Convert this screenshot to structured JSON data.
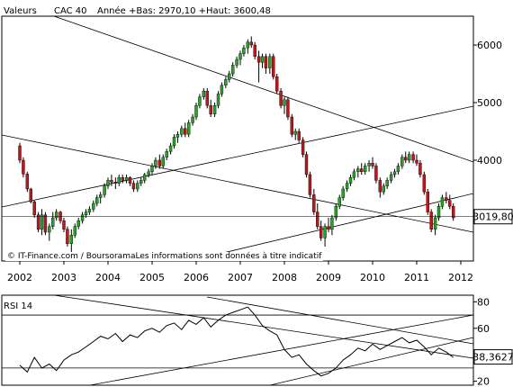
{
  "header": {
    "label": "Valeurs",
    "instrument": "CAC 40",
    "summary": "Année +Bas: 2970,10 +Haut: 3600,48"
  },
  "copyright": "© IT-Finance.com / BoursoramaLes informations sont données à titre indicatif",
  "chart_data": [
    {
      "type": "candlestick",
      "title": "",
      "x_ticks": [
        "2002",
        "2003",
        "2004",
        "2005",
        "2006",
        "2007",
        "2008",
        "2009",
        "2010",
        "2011",
        "2012"
      ],
      "y_ticks": [
        4000,
        5000,
        6000
      ],
      "ylim": [
        2250,
        6500
      ],
      "last_value_label": "3019,80",
      "last_value": 3019.8,
      "colors": {
        "up": "#2ca02c",
        "down": "#c0161b"
      },
      "candles": [
        [
          2002.0,
          4250,
          4300,
          3950,
          4000
        ],
        [
          2002.08,
          4000,
          4050,
          3700,
          3760
        ],
        [
          2002.17,
          3760,
          3800,
          3450,
          3500
        ],
        [
          2002.25,
          3500,
          3520,
          3250,
          3280
        ],
        [
          2002.33,
          3280,
          3300,
          3000,
          3050
        ],
        [
          2002.42,
          3050,
          3100,
          2750,
          2800
        ],
        [
          2002.5,
          2800,
          3150,
          2700,
          3050
        ],
        [
          2002.58,
          3050,
          3100,
          2700,
          2750
        ],
        [
          2002.67,
          2750,
          2900,
          2600,
          2850
        ],
        [
          2002.75,
          2850,
          3100,
          2800,
          3000
        ],
        [
          2002.83,
          3000,
          3150,
          2950,
          3100
        ],
        [
          2002.92,
          3100,
          3120,
          2900,
          2950
        ],
        [
          2003.0,
          2950,
          3000,
          2750,
          2800
        ],
        [
          2003.08,
          2800,
          2850,
          2500,
          2550
        ],
        [
          2003.17,
          2550,
          2800,
          2400,
          2700
        ],
        [
          2003.25,
          2700,
          2900,
          2650,
          2850
        ],
        [
          2003.33,
          2850,
          3000,
          2800,
          2950
        ],
        [
          2003.42,
          2950,
          3100,
          2900,
          3050
        ],
        [
          2003.5,
          3050,
          3150,
          3000,
          3100
        ],
        [
          2003.58,
          3100,
          3200,
          3050,
          3150
        ],
        [
          2003.67,
          3150,
          3300,
          3100,
          3250
        ],
        [
          2003.75,
          3250,
          3400,
          3200,
          3350
        ],
        [
          2003.83,
          3350,
          3450,
          3250,
          3400
        ],
        [
          2003.92,
          3400,
          3600,
          3350,
          3550
        ],
        [
          2004.0,
          3550,
          3700,
          3500,
          3650
        ],
        [
          2004.08,
          3650,
          3750,
          3550,
          3620
        ],
        [
          2004.17,
          3620,
          3700,
          3500,
          3600
        ],
        [
          2004.25,
          3600,
          3750,
          3550,
          3700
        ],
        [
          2004.33,
          3700,
          3750,
          3600,
          3650
        ],
        [
          2004.42,
          3650,
          3750,
          3600,
          3700
        ],
        [
          2004.5,
          3700,
          3720,
          3550,
          3600
        ],
        [
          2004.58,
          3600,
          3650,
          3450,
          3500
        ],
        [
          2004.67,
          3500,
          3650,
          3450,
          3600
        ],
        [
          2004.75,
          3600,
          3700,
          3550,
          3650
        ],
        [
          2004.83,
          3650,
          3780,
          3600,
          3750
        ],
        [
          2004.92,
          3750,
          3850,
          3700,
          3800
        ],
        [
          2005.0,
          3800,
          3950,
          3750,
          3900
        ],
        [
          2005.08,
          3900,
          4050,
          3850,
          4000
        ],
        [
          2005.17,
          4000,
          4100,
          3850,
          3900
        ],
        [
          2005.25,
          3900,
          4100,
          3850,
          4050
        ],
        [
          2005.33,
          4050,
          4200,
          4000,
          4150
        ],
        [
          2005.42,
          4150,
          4300,
          4100,
          4250
        ],
        [
          2005.5,
          4250,
          4450,
          4200,
          4400
        ],
        [
          2005.58,
          4400,
          4500,
          4300,
          4450
        ],
        [
          2005.67,
          4450,
          4600,
          4400,
          4550
        ],
        [
          2005.75,
          4550,
          4650,
          4400,
          4450
        ],
        [
          2005.83,
          4450,
          4700,
          4400,
          4650
        ],
        [
          2005.92,
          4650,
          4800,
          4600,
          4750
        ],
        [
          2006.0,
          4750,
          5000,
          4700,
          4950
        ],
        [
          2006.08,
          4950,
          5150,
          4900,
          5100
        ],
        [
          2006.17,
          5100,
          5250,
          5050,
          5200
        ],
        [
          2006.25,
          5200,
          5250,
          4900,
          4950
        ],
        [
          2006.33,
          4950,
          5050,
          4750,
          4800
        ],
        [
          2006.42,
          4800,
          5000,
          4750,
          4950
        ],
        [
          2006.5,
          4950,
          5200,
          4900,
          5150
        ],
        [
          2006.58,
          5150,
          5350,
          5100,
          5300
        ],
        [
          2006.67,
          5300,
          5450,
          5250,
          5400
        ],
        [
          2006.75,
          5400,
          5550,
          5350,
          5500
        ],
        [
          2006.83,
          5500,
          5700,
          5450,
          5650
        ],
        [
          2006.92,
          5650,
          5800,
          5600,
          5750
        ],
        [
          2007.0,
          5750,
          5900,
          5650,
          5850
        ],
        [
          2007.08,
          5850,
          6000,
          5800,
          5950
        ],
        [
          2007.17,
          5950,
          6100,
          5850,
          6050
        ],
        [
          2007.25,
          6050,
          6150,
          5950,
          6000
        ],
        [
          2007.33,
          6000,
          6050,
          5750,
          5800
        ],
        [
          2007.42,
          5800,
          5900,
          5350,
          5700
        ],
        [
          2007.5,
          5700,
          5850,
          5600,
          5800
        ],
        [
          2007.58,
          5800,
          5850,
          5500,
          5600
        ],
        [
          2007.67,
          5600,
          5850,
          5500,
          5800
        ],
        [
          2007.75,
          5800,
          5850,
          5400,
          5450
        ],
        [
          2007.83,
          5450,
          5500,
          5150,
          5200
        ],
        [
          2007.92,
          5200,
          5250,
          4900,
          4950
        ],
        [
          2008.0,
          4950,
          5100,
          4800,
          5050
        ],
        [
          2008.08,
          5050,
          5100,
          4700,
          4750
        ],
        [
          2008.17,
          4750,
          4800,
          4400,
          4450
        ],
        [
          2008.25,
          4450,
          4550,
          4350,
          4500
        ],
        [
          2008.33,
          4500,
          4550,
          4300,
          4350
        ],
        [
          2008.42,
          4350,
          4400,
          4050,
          4100
        ],
        [
          2008.5,
          4100,
          4150,
          3700,
          3750
        ],
        [
          2008.58,
          3750,
          3800,
          3350,
          3400
        ],
        [
          2008.67,
          3400,
          3500,
          3050,
          3100
        ],
        [
          2008.75,
          3100,
          3250,
          2800,
          2850
        ],
        [
          2008.83,
          2850,
          2950,
          2600,
          2650
        ],
        [
          2008.92,
          2650,
          2900,
          2500,
          2850
        ],
        [
          2009.0,
          2850,
          3000,
          2750,
          2800
        ],
        [
          2009.08,
          2800,
          3050,
          2700,
          3000
        ],
        [
          2009.17,
          3000,
          3250,
          2950,
          3200
        ],
        [
          2009.25,
          3200,
          3400,
          3150,
          3350
        ],
        [
          2009.33,
          3350,
          3550,
          3300,
          3500
        ],
        [
          2009.42,
          3500,
          3650,
          3450,
          3600
        ],
        [
          2009.5,
          3600,
          3750,
          3550,
          3700
        ],
        [
          2009.58,
          3700,
          3850,
          3650,
          3800
        ],
        [
          2009.67,
          3800,
          3900,
          3700,
          3850
        ],
        [
          2009.75,
          3850,
          3950,
          3750,
          3800
        ],
        [
          2009.83,
          3800,
          3950,
          3750,
          3900
        ],
        [
          2009.92,
          3900,
          4000,
          3800,
          3950
        ],
        [
          2010.0,
          3950,
          4050,
          3850,
          3900
        ],
        [
          2010.08,
          3900,
          3950,
          3600,
          3650
        ],
        [
          2010.17,
          3650,
          3700,
          3350,
          3450
        ],
        [
          2010.25,
          3450,
          3600,
          3400,
          3550
        ],
        [
          2010.33,
          3550,
          3700,
          3500,
          3650
        ],
        [
          2010.42,
          3650,
          3800,
          3600,
          3750
        ],
        [
          2010.5,
          3750,
          3850,
          3700,
          3800
        ],
        [
          2010.58,
          3800,
          3950,
          3750,
          3900
        ],
        [
          2010.67,
          3900,
          4100,
          3850,
          4050
        ],
        [
          2010.75,
          4050,
          4150,
          3950,
          4000
        ],
        [
          2010.83,
          4000,
          4150,
          3950,
          4100
        ],
        [
          2010.92,
          4100,
          4150,
          3950,
          4000
        ],
        [
          2011.0,
          4000,
          4100,
          3900,
          3950
        ],
        [
          2011.08,
          3950,
          4000,
          3700,
          3750
        ],
        [
          2011.17,
          3750,
          3800,
          3400,
          3450
        ],
        [
          2011.25,
          3450,
          3500,
          3050,
          3100
        ],
        [
          2011.33,
          3100,
          3150,
          2750,
          2800
        ],
        [
          2011.42,
          2800,
          3050,
          2700,
          3000
        ],
        [
          2011.5,
          3000,
          3250,
          2950,
          3200
        ],
        [
          2011.58,
          3200,
          3400,
          3150,
          3350
        ],
        [
          2011.67,
          3350,
          3450,
          3250,
          3300
        ],
        [
          2011.75,
          3300,
          3400,
          3150,
          3200
        ],
        [
          2011.83,
          3200,
          3250,
          2950,
          3000
        ]
      ]
    },
    {
      "type": "line",
      "label": "RSI 14",
      "y_ticks": [
        20,
        40,
        60,
        80
      ],
      "ylim": [
        17,
        85
      ],
      "last_value_label": "38,3627",
      "last_value": 38.3627,
      "x": [
        2002.0,
        2002.17,
        2002.33,
        2002.5,
        2002.67,
        2002.83,
        2003.0,
        2003.17,
        2003.33,
        2003.5,
        2003.67,
        2003.83,
        2004.0,
        2004.17,
        2004.33,
        2004.5,
        2004.67,
        2004.83,
        2005.0,
        2005.17,
        2005.33,
        2005.5,
        2005.67,
        2005.83,
        2006.0,
        2006.17,
        2006.33,
        2006.5,
        2006.67,
        2006.83,
        2007.0,
        2007.17,
        2007.33,
        2007.5,
        2007.67,
        2007.83,
        2008.0,
        2008.17,
        2008.33,
        2008.5,
        2008.67,
        2008.83,
        2009.0,
        2009.17,
        2009.33,
        2009.5,
        2009.67,
        2009.83,
        2010.0,
        2010.17,
        2010.33,
        2010.5,
        2010.67,
        2010.83,
        2011.0,
        2011.17,
        2011.33,
        2011.5,
        2011.67,
        2011.83
      ],
      "values": [
        32,
        27,
        38,
        30,
        33,
        28,
        36,
        40,
        42,
        46,
        50,
        54,
        52,
        56,
        50,
        55,
        53,
        58,
        60,
        57,
        62,
        64,
        59,
        66,
        63,
        68,
        61,
        66,
        70,
        72,
        74,
        76,
        70,
        62,
        58,
        55,
        44,
        38,
        40,
        33,
        28,
        24,
        26,
        30,
        36,
        40,
        45,
        43,
        48,
        44,
        47,
        50,
        53,
        49,
        51,
        46,
        40,
        45,
        42,
        38
      ]
    }
  ]
}
